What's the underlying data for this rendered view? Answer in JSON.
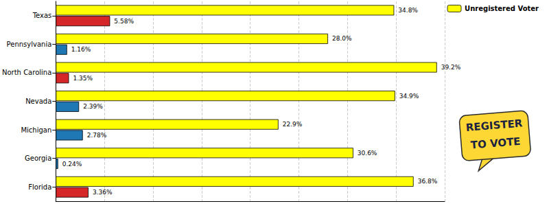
{
  "chart_data": {
    "type": "bar",
    "orientation": "horizontal",
    "categories": [
      "Texas",
      "Pennsylvania",
      "North Carolina",
      "Nevada",
      "Michigan",
      "Georgia",
      "Florida"
    ],
    "series": [
      {
        "name": "Unregistered Voter",
        "color": "#ffff00",
        "values": [
          34.8,
          28.0,
          39.2,
          34.9,
          22.9,
          30.6,
          36.8
        ],
        "value_labels": [
          "34.8%",
          "28.0%",
          "39.2%",
          "34.9%",
          "22.9%",
          "30.6%",
          "36.8%"
        ]
      },
      {
        "colors": [
          "#d62728",
          "#1f77b4",
          "#d62728",
          "#1f77b4",
          "#1f77b4",
          "#1f77b4",
          "#d62728"
        ],
        "values": [
          5.58,
          1.16,
          1.35,
          2.39,
          2.78,
          0.24,
          3.36
        ],
        "value_labels": [
          "5.58%",
          "1.16%",
          "1.35%",
          "2.39%",
          "2.78%",
          "0.24%",
          "3.36%"
        ]
      }
    ],
    "xlim": [
      0,
      40
    ],
    "xticks": [
      0,
      5,
      10,
      15,
      20,
      25,
      30,
      35,
      40
    ],
    "grid": true,
    "legend": "upper right",
    "data_labels": true,
    "tick_labels": "y",
    "annotations": [
      "REGISTER",
      "TO VOTE"
    ]
  }
}
